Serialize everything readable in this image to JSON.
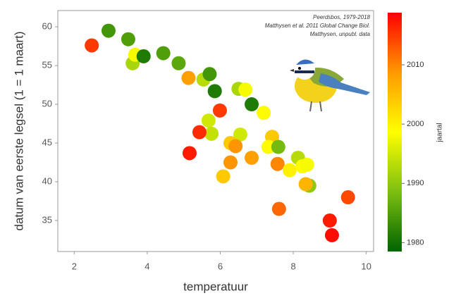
{
  "chart_data": {
    "type": "scatter",
    "xlabel": "temperatuur",
    "ylabel": "datum van eerste legsel (1 = 1 maart)",
    "annotations": [
      "Peerdsbos, 1979-2018",
      "Matthysen et al. 2011 Global Change Biol.",
      "Matthysen, unpubl. data"
    ],
    "x": [
      2.48,
      2.94,
      3.48,
      3.6,
      3.67,
      3.9,
      4.44,
      4.86,
      5.13,
      5.54,
      5.71,
      5.85,
      6.5,
      6.69,
      6.86,
      7.19,
      5.99,
      5.68,
      5.76,
      5.43,
      5.16,
      6.55,
      6.28,
      6.42,
      6.28,
      6.08,
      6.86,
      7.42,
      7.32,
      7.59,
      7.57,
      7.9,
      8.13,
      8.25,
      8.38,
      8.44,
      8.34,
      7.61,
      9.0,
      9.06,
      9.5
    ],
    "values": [
      57.6,
      59.5,
      58.4,
      55.3,
      56.4,
      56.2,
      56.6,
      55.3,
      53.4,
      53.2,
      53.9,
      51.7,
      52.0,
      51.9,
      50.0,
      48.9,
      49.2,
      47.9,
      46.2,
      46.4,
      43.7,
      46.1,
      45.0,
      44.6,
      42.5,
      40.7,
      43.1,
      45.8,
      44.5,
      44.5,
      42.3,
      41.5,
      43.1,
      42.0,
      42.2,
      39.5,
      39.7,
      36.5,
      35.0,
      33.1,
      38.0
    ],
    "color_values": [
      2015,
      1984,
      1985,
      1992,
      1998,
      1981,
      1985,
      1986,
      2008,
      1993,
      1984,
      1981,
      1992,
      1998,
      1981,
      1999,
      2015,
      1995,
      1994,
      2016,
      2017,
      1995,
      2004,
      2009,
      2009,
      2004,
      2008,
      2004,
      1999,
      1988,
      2010,
      2000,
      1993,
      1999,
      1998,
      1990,
      2006,
      2012,
      2017,
      2018,
      2014
    ],
    "colormap": [
      "#006400",
      "#7cbf10",
      "#ffff00",
      "#ff9900",
      "#ff0000"
    ],
    "colorbar_label": "jaartal",
    "clim": [
      1978.5,
      2018.8
    ],
    "cticks": [
      1980,
      1990,
      2000,
      2010
    ],
    "xlim": [
      1.55,
      10.2
    ],
    "xticks": [
      2,
      4,
      6,
      8,
      10
    ],
    "ylim": [
      31,
      62.1
    ],
    "yticks": [
      35,
      40,
      45,
      50,
      55,
      60
    ]
  }
}
